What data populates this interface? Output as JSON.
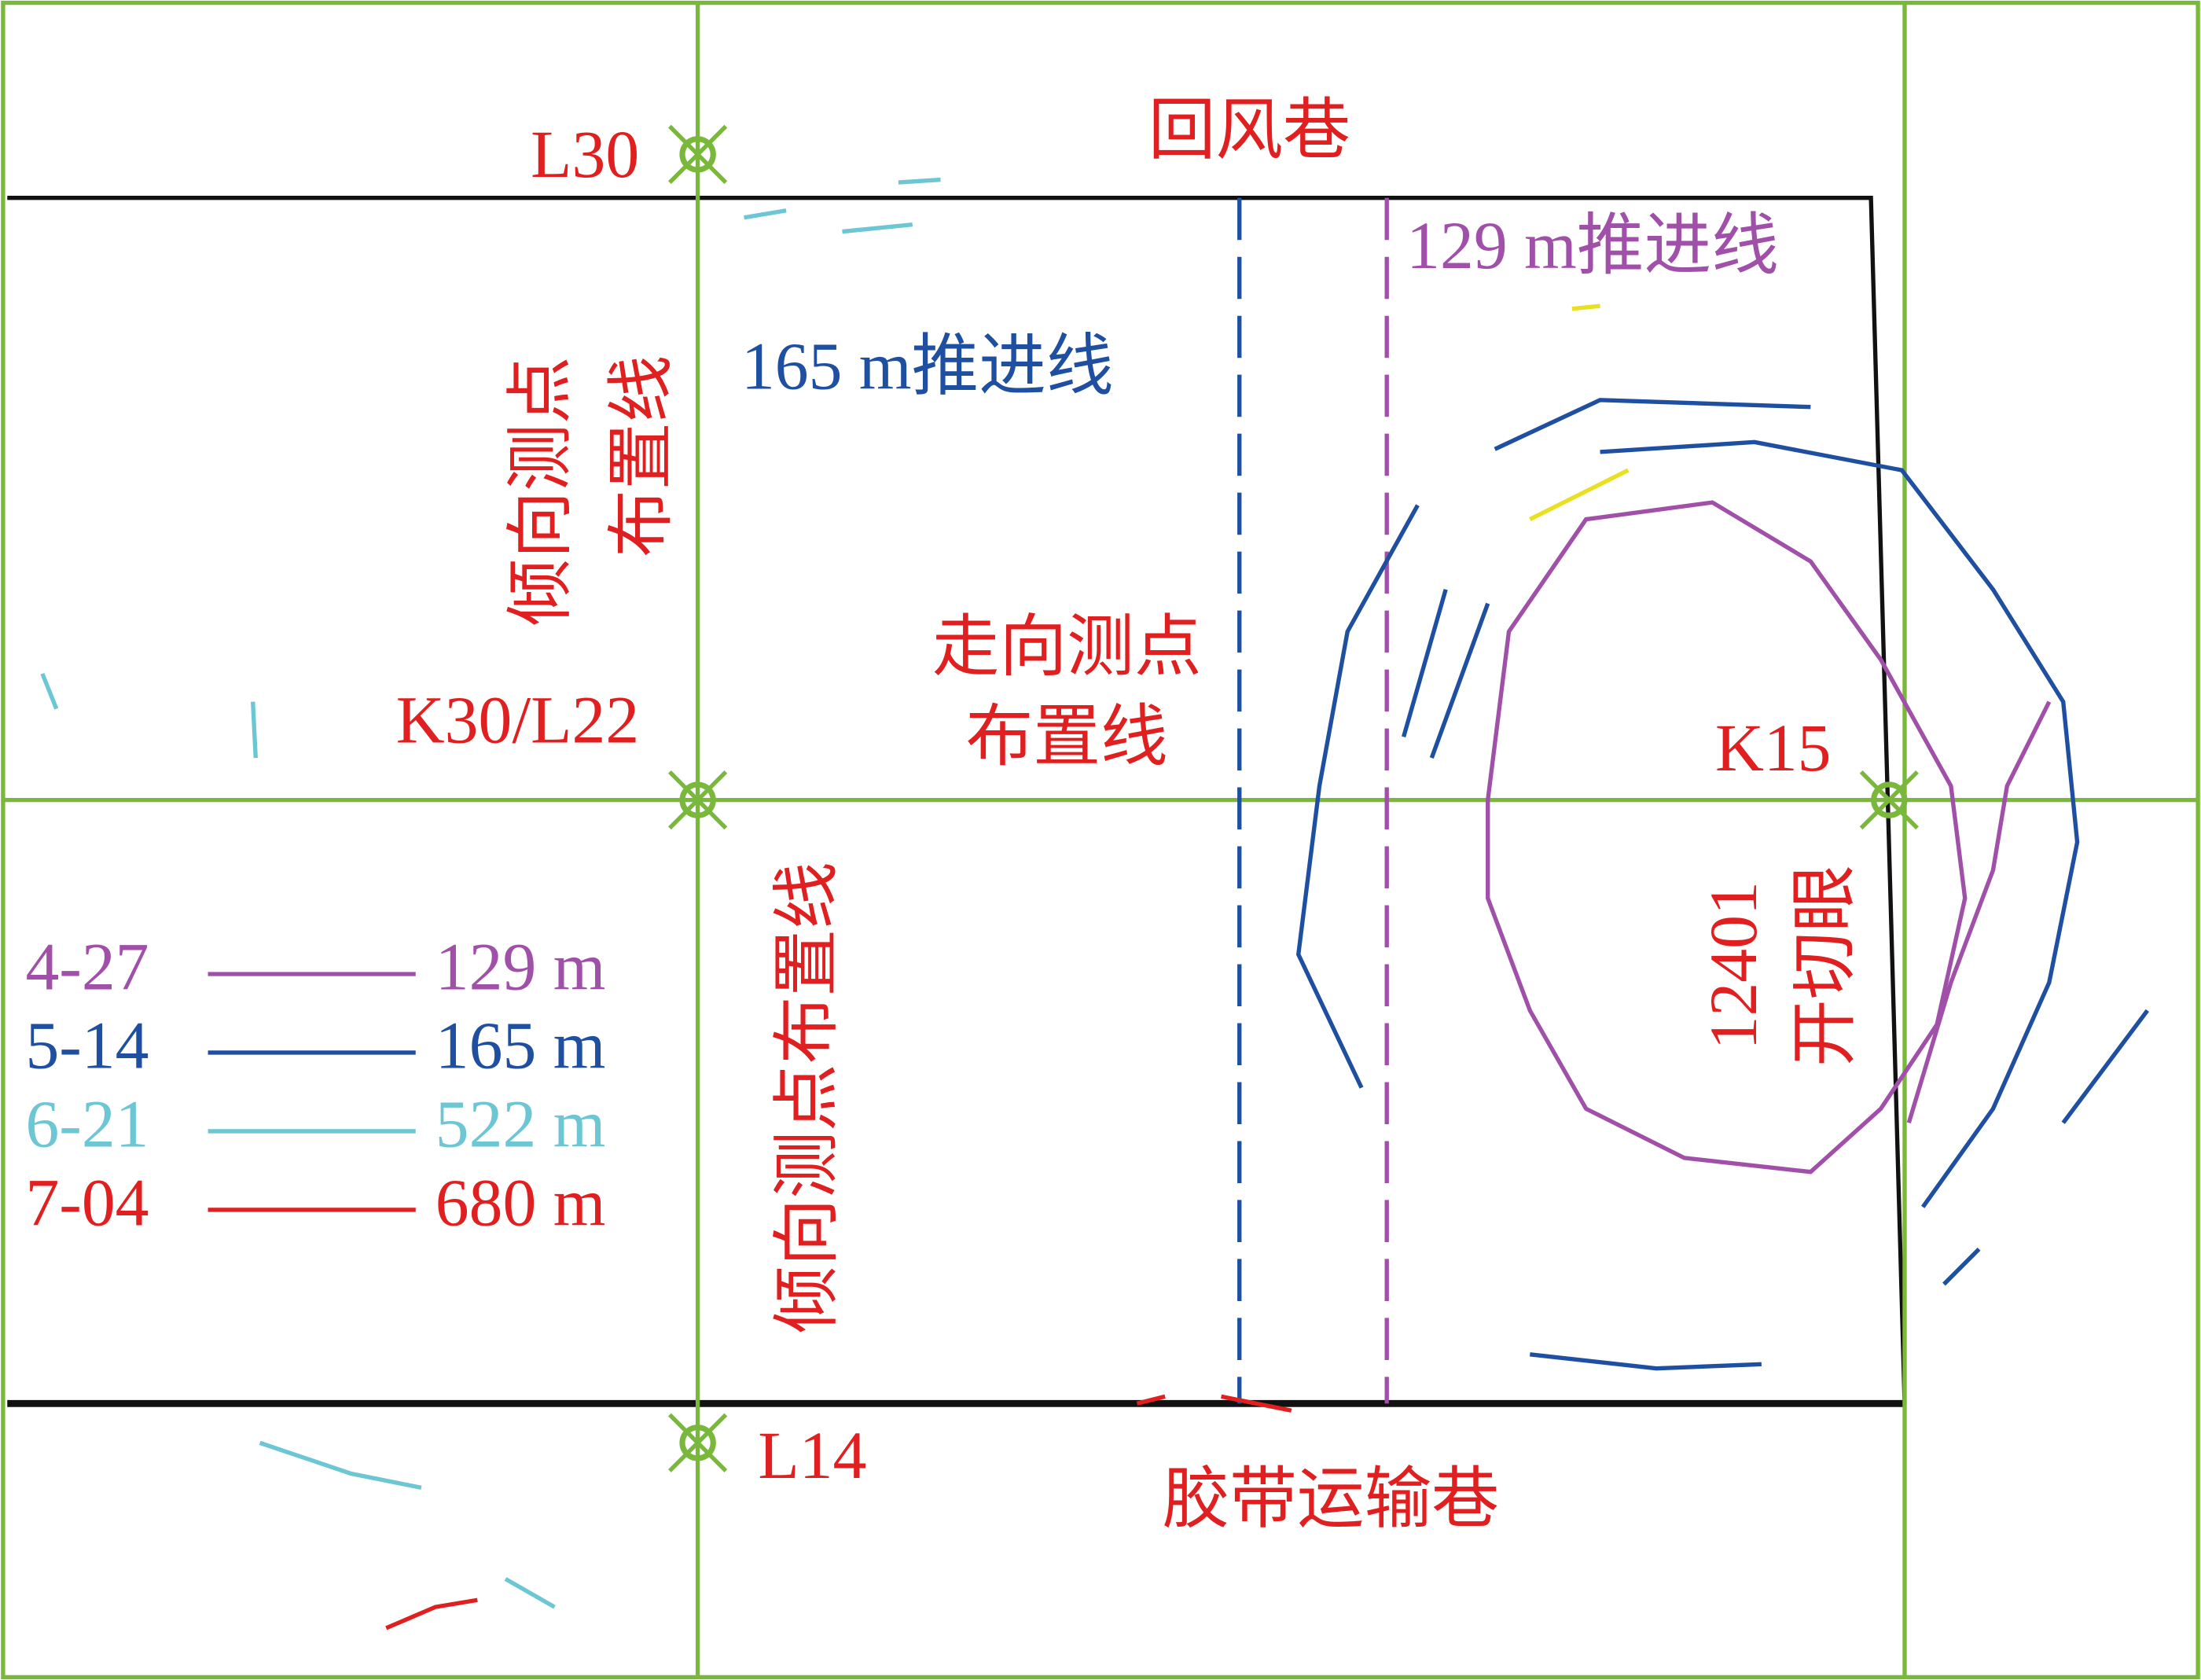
{
  "roadways": {
    "top": "回风巷",
    "bottom": "胶带运输巷"
  },
  "points": {
    "l30": "L30",
    "k30_l22": "K30/L22",
    "l14": "L14",
    "k15": "K15"
  },
  "lines": {
    "dip_line_a": [
      "倾向测点",
      "布置线"
    ],
    "dip_line_b": "倾向测点布置线",
    "strike_line": [
      "走向测点",
      "布置线"
    ],
    "advance_165": "165 m推进线",
    "advance_129": "129 m推进线"
  },
  "cut": [
    "12401",
    "开切眼"
  ],
  "legend": [
    {
      "date": "4-27",
      "distance": "129 m",
      "color": "#a050a8"
    },
    {
      "date": "5-14",
      "distance": "165 m",
      "color": "#1f4fa0"
    },
    {
      "date": "6-21",
      "distance": "522 m",
      "color": "#6cc6d4"
    },
    {
      "date": "7-04",
      "distance": "680 m",
      "color": "#e02020"
    }
  ]
}
